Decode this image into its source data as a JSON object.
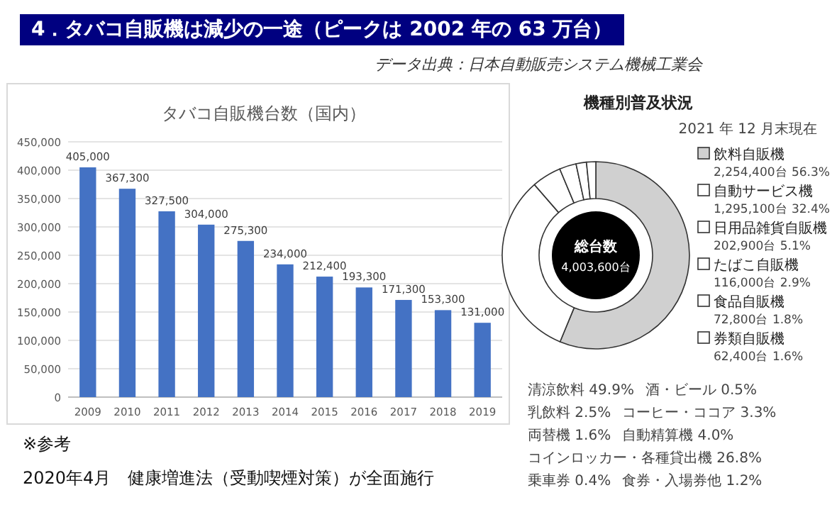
{
  "chart_data": [
    {
      "type": "bar",
      "title": "タバコ自販機台数（国内）",
      "categories": [
        "2009",
        "2010",
        "2011",
        "2012",
        "2013",
        "2014",
        "2015",
        "2016",
        "2017",
        "2018",
        "2019"
      ],
      "values": [
        405000,
        367300,
        327500,
        304000,
        275300,
        234000,
        212400,
        193300,
        171300,
        153300,
        131000
      ],
      "value_labels": [
        "405,000",
        "367,300",
        "327,500",
        "304,000",
        "275,300",
        "234,000",
        "212,400",
        "193,300",
        "171,300",
        "153,300",
        "131,000"
      ],
      "color": "#4472c4",
      "ylim": [
        0,
        450000
      ],
      "grid": "y",
      "yticks": [
        {
          "value": 0,
          "label": "0"
        },
        {
          "value": 50000,
          "label": "50,000"
        },
        {
          "value": 100000,
          "label": "100,000"
        },
        {
          "value": 150000,
          "label": "150,000"
        },
        {
          "value": 200000,
          "label": "200,000"
        },
        {
          "value": 250000,
          "label": "250,000"
        },
        {
          "value": 300000,
          "label": "300,000"
        },
        {
          "value": 350000,
          "label": "350,000"
        },
        {
          "value": 400000,
          "label": "400,000"
        },
        {
          "value": 450000,
          "label": "450,000"
        }
      ],
      "annotations": [
        "4．タバコ自販機は減少の一途（ピークは 2002 年の 63 万台）",
        "データ出典：日本自動販売システム機械工業会",
        "※参考",
        "2020年4月　健康増進法（受動喫煙対策）が全面施行"
      ]
    },
    {
      "type": "donut",
      "title": "機種別普及状況",
      "categories": [
        "飲料自販機",
        "自動サービス機",
        "日用品雑貨自販機",
        "たばこ自販機",
        "食品自販機",
        "券類自販機"
      ],
      "values": [
        56.3,
        32.4,
        5.1,
        2.9,
        1.8,
        1.6
      ],
      "value_labels": [
        "2,254,400台 56.3%",
        "1,295,100台 32.4%",
        "202,900台 5.1%",
        "116,000台 2.9%",
        "72,800台 1.8%",
        "62,400台 1.6%"
      ],
      "colors": [
        "#d0d0d0",
        "#ffffff",
        "#ffffff",
        "#ffffff",
        "#ffffff",
        "#ffffff"
      ],
      "legend": "right",
      "annotations": [
        "総台数",
        "4,003,600台",
        "2021 年 12 月末現在",
        "清涼飲料 49.9%",
        "酒・ビール 0.5%",
        "乳飲料 2.5%",
        "コーヒー・ココア 3.3%",
        "両替機 1.6%",
        "自動精算機 4.0%",
        "コインロッカー・各種貸出機 26.8%",
        "乗車券 0.4%",
        "食券・入場券他 1.2%"
      ]
    }
  ]
}
